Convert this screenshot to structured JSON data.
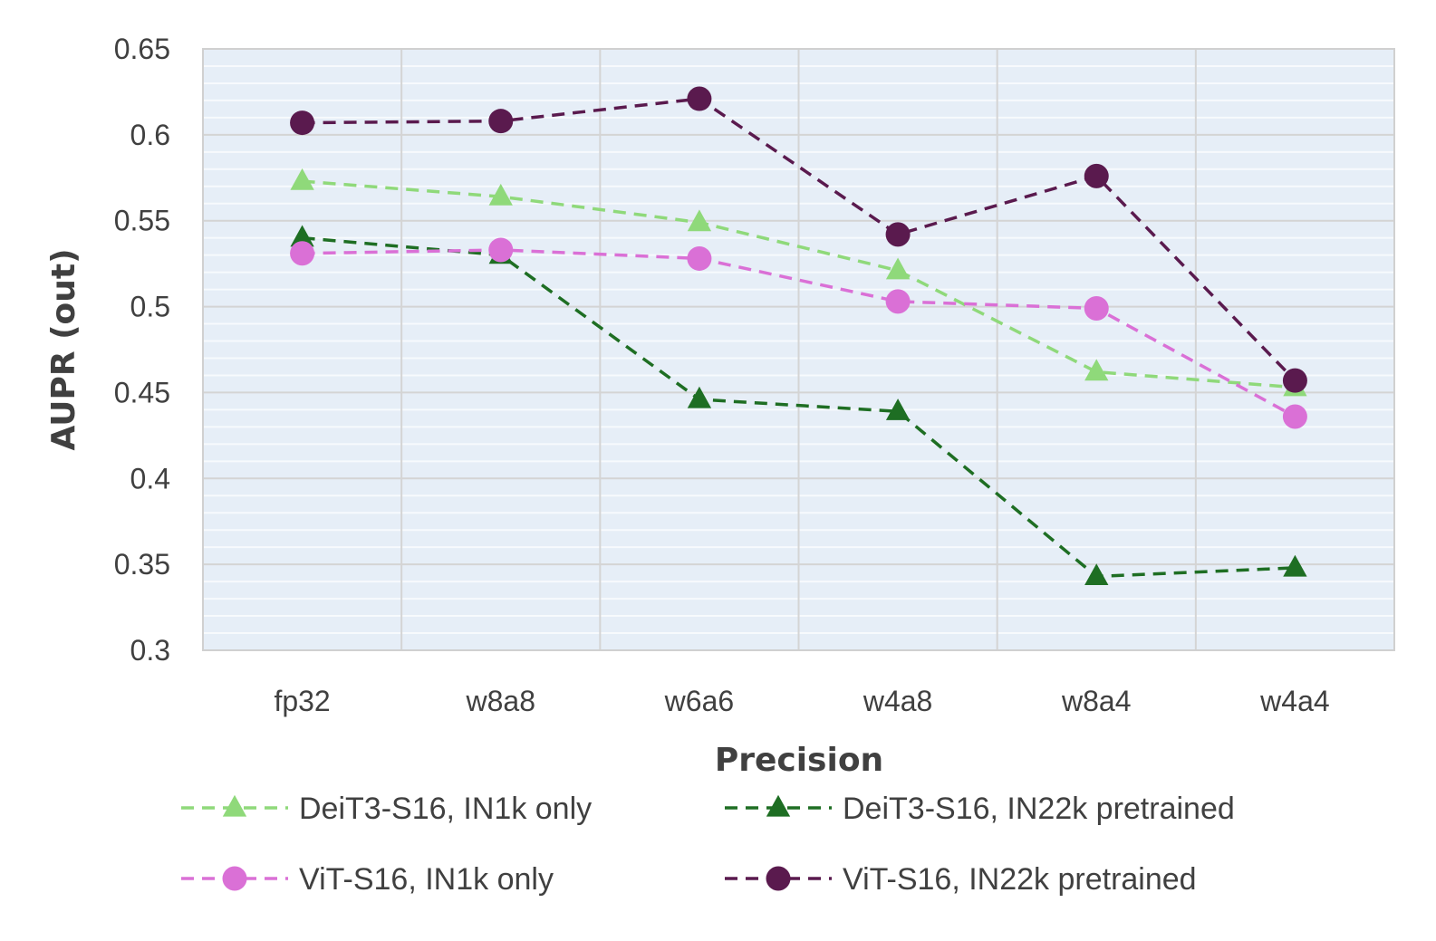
{
  "chart_data": {
    "type": "line",
    "title": "",
    "xlabel": "Precision",
    "ylabel": "AUPR (out)",
    "categories": [
      "fp32",
      "w8a8",
      "w6a6",
      "w4a8",
      "w8a4",
      "w4a4"
    ],
    "ylim": [
      0.3,
      0.65
    ],
    "y_ticks": [
      0.3,
      0.35,
      0.4,
      0.45,
      0.5,
      0.55,
      0.6,
      0.65
    ],
    "y_tick_labels": [
      "0.3",
      "0.35",
      "0.4",
      "0.45",
      "0.5",
      "0.55",
      "0.6",
      "0.65"
    ],
    "grid": true,
    "legend_position": "bottom",
    "series": [
      {
        "name": "DeiT3-S16, IN1k only",
        "color": "#8fd97a",
        "marker": "triangle",
        "values": [
          0.573,
          0.564,
          0.549,
          0.521,
          0.462,
          0.453
        ]
      },
      {
        "name": "DeiT3-S16, IN22k pretrained",
        "color": "#1e6e23",
        "marker": "triangle",
        "values": [
          0.54,
          0.53,
          0.446,
          0.439,
          0.343,
          0.348
        ]
      },
      {
        "name": "ViT-S16, IN1k only",
        "color": "#da70d6",
        "marker": "circle",
        "values": [
          0.531,
          0.533,
          0.528,
          0.503,
          0.499,
          0.436
        ]
      },
      {
        "name": "ViT-S16, IN22k pretrained",
        "color": "#5a1a4e",
        "marker": "circle",
        "values": [
          0.607,
          0.608,
          0.621,
          0.542,
          0.576,
          0.457
        ]
      }
    ],
    "legend_order": [
      0,
      1,
      2,
      3
    ]
  }
}
